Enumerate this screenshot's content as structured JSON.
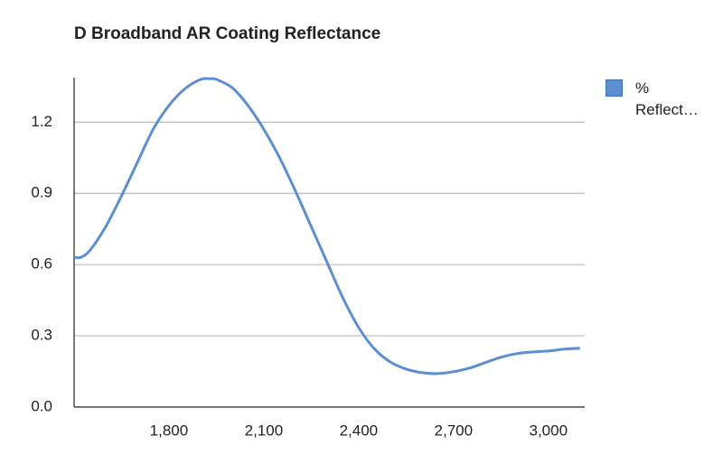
{
  "chart_data": {
    "type": "line",
    "title": "D Broadband AR Coating Reflectance",
    "x": [
      1500,
      1520,
      1550,
      1600,
      1650,
      1700,
      1750,
      1800,
      1850,
      1900,
      1930,
      1950,
      2000,
      2050,
      2100,
      2150,
      2200,
      2250,
      2300,
      2350,
      2400,
      2450,
      2500,
      2550,
      2600,
      2650,
      2700,
      2750,
      2800,
      2850,
      2900,
      2950,
      3000,
      3050,
      3100
    ],
    "series": [
      {
        "name": "% Reflect…",
        "color": "#5b8fd0",
        "values": [
          0.632,
          0.63,
          0.66,
          0.76,
          0.89,
          1.03,
          1.17,
          1.27,
          1.34,
          1.38,
          1.383,
          1.38,
          1.345,
          1.27,
          1.17,
          1.05,
          0.91,
          0.76,
          0.61,
          0.46,
          0.335,
          0.245,
          0.19,
          0.16,
          0.145,
          0.141,
          0.149,
          0.164,
          0.187,
          0.21,
          0.225,
          0.232,
          0.236,
          0.244,
          0.248
        ]
      }
    ],
    "xlim": [
      1500,
      3115
    ],
    "xticks": [
      {
        "value": 1800,
        "label": "1,800"
      },
      {
        "value": 2100,
        "label": "2,100"
      },
      {
        "value": 2400,
        "label": "2,400"
      },
      {
        "value": 2700,
        "label": "2,700"
      },
      {
        "value": 3000,
        "label": "3,000"
      }
    ],
    "ylim": [
      0,
      1.38
    ],
    "yticks": [
      {
        "value": 0,
        "label": "0.0"
      },
      {
        "value": 0.3,
        "label": "0.3"
      },
      {
        "value": 0.6,
        "label": "0.6"
      },
      {
        "value": 0.9,
        "label": "0.9"
      },
      {
        "value": 1.2,
        "label": "1.2"
      }
    ],
    "grid": true,
    "legend": "right"
  }
}
